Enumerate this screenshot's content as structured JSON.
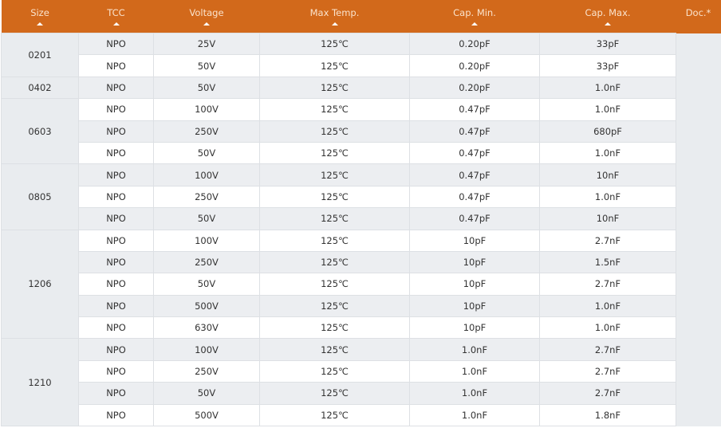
{
  "header": {
    "columns": [
      "Size",
      "TCC",
      "Voltage",
      "Max Temp.",
      "Cap. Min.",
      "Cap. Max.",
      "Doc.*"
    ]
  },
  "colors": {
    "header_bg": "#d2691b",
    "row_alt": "#eceef1"
  },
  "groups": [
    {
      "size": "0201",
      "rows": [
        [
          "NPO",
          "25V",
          "125℃",
          "0.20pF",
          "33pF"
        ],
        [
          "NPO",
          "50V",
          "125℃",
          "0.20pF",
          "33pF"
        ]
      ]
    },
    {
      "size": "0402",
      "rows": [
        [
          "NPO",
          "50V",
          "125℃",
          "0.20pF",
          "1.0nF"
        ]
      ]
    },
    {
      "size": "0603",
      "rows": [
        [
          "NPO",
          "100V",
          "125℃",
          "0.47pF",
          "1.0nF"
        ],
        [
          "NPO",
          "250V",
          "125℃",
          "0.47pF",
          "680pF"
        ],
        [
          "NPO",
          "50V",
          "125℃",
          "0.47pF",
          "1.0nF"
        ]
      ]
    },
    {
      "size": "0805",
      "rows": [
        [
          "NPO",
          "100V",
          "125℃",
          "0.47pF",
          "10nF"
        ],
        [
          "NPO",
          "250V",
          "125℃",
          "0.47pF",
          "1.0nF"
        ],
        [
          "NPO",
          "50V",
          "125℃",
          "0.47pF",
          "10nF"
        ]
      ]
    },
    {
      "size": "1206",
      "rows": [
        [
          "NPO",
          "100V",
          "125℃",
          "10pF",
          "2.7nF"
        ],
        [
          "NPO",
          "250V",
          "125℃",
          "10pF",
          "1.5nF"
        ],
        [
          "NPO",
          "50V",
          "125℃",
          "10pF",
          "2.7nF"
        ],
        [
          "NPO",
          "500V",
          "125℃",
          "10pF",
          "1.0nF"
        ],
        [
          "NPO",
          "630V",
          "125℃",
          "10pF",
          "1.0nF"
        ]
      ]
    },
    {
      "size": "1210",
      "rows": [
        [
          "NPO",
          "100V",
          "125℃",
          "1.0nF",
          "2.7nF"
        ],
        [
          "NPO",
          "250V",
          "125℃",
          "1.0nF",
          "2.7nF"
        ],
        [
          "NPO",
          "50V",
          "125℃",
          "1.0nF",
          "2.7nF"
        ],
        [
          "NPO",
          "500V",
          "125℃",
          "1.0nF",
          "1.8nF"
        ]
      ]
    }
  ]
}
